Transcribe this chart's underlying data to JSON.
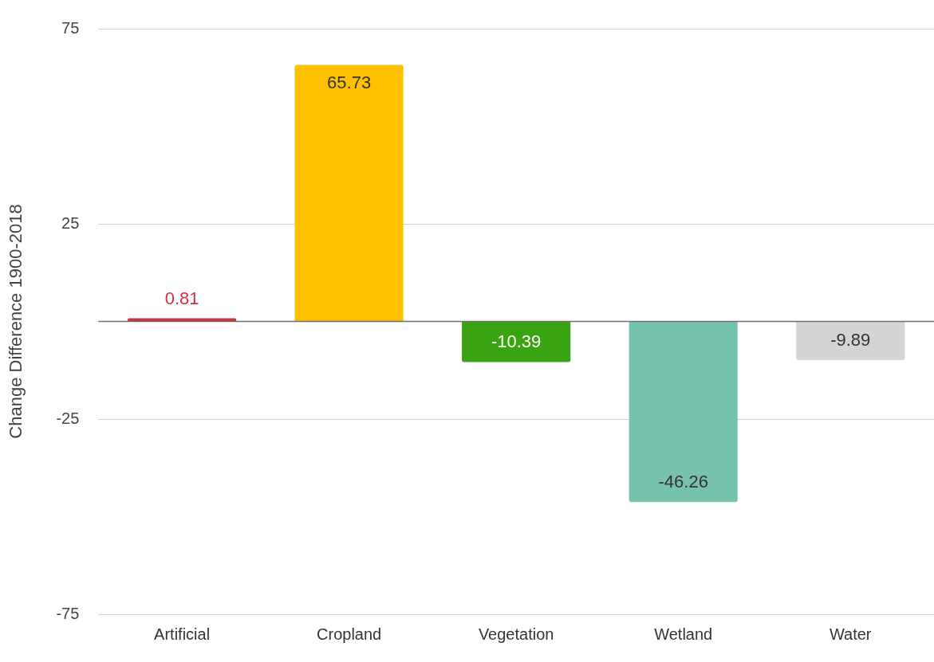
{
  "chart_data": {
    "type": "bar",
    "ylabel": "Change Difference 1900-2018",
    "categories": [
      "Artificial",
      "Cropland",
      "Vegetation",
      "Wetland",
      "Water"
    ],
    "values": [
      0.81,
      65.73,
      -10.39,
      -46.26,
      -9.89
    ],
    "colors": [
      "#d2303c",
      "#ffc000",
      "#3aa312",
      "#77c2ae",
      "#d4d4d4"
    ],
    "ylim": [
      -75,
      75
    ],
    "yticks": [
      -75,
      -25,
      25,
      75
    ],
    "grid": "y",
    "legend": false,
    "data_labels": true,
    "ref_lines": [
      {
        "axis": "y",
        "value": 0,
        "color": "#6e6e6e"
      }
    ]
  }
}
